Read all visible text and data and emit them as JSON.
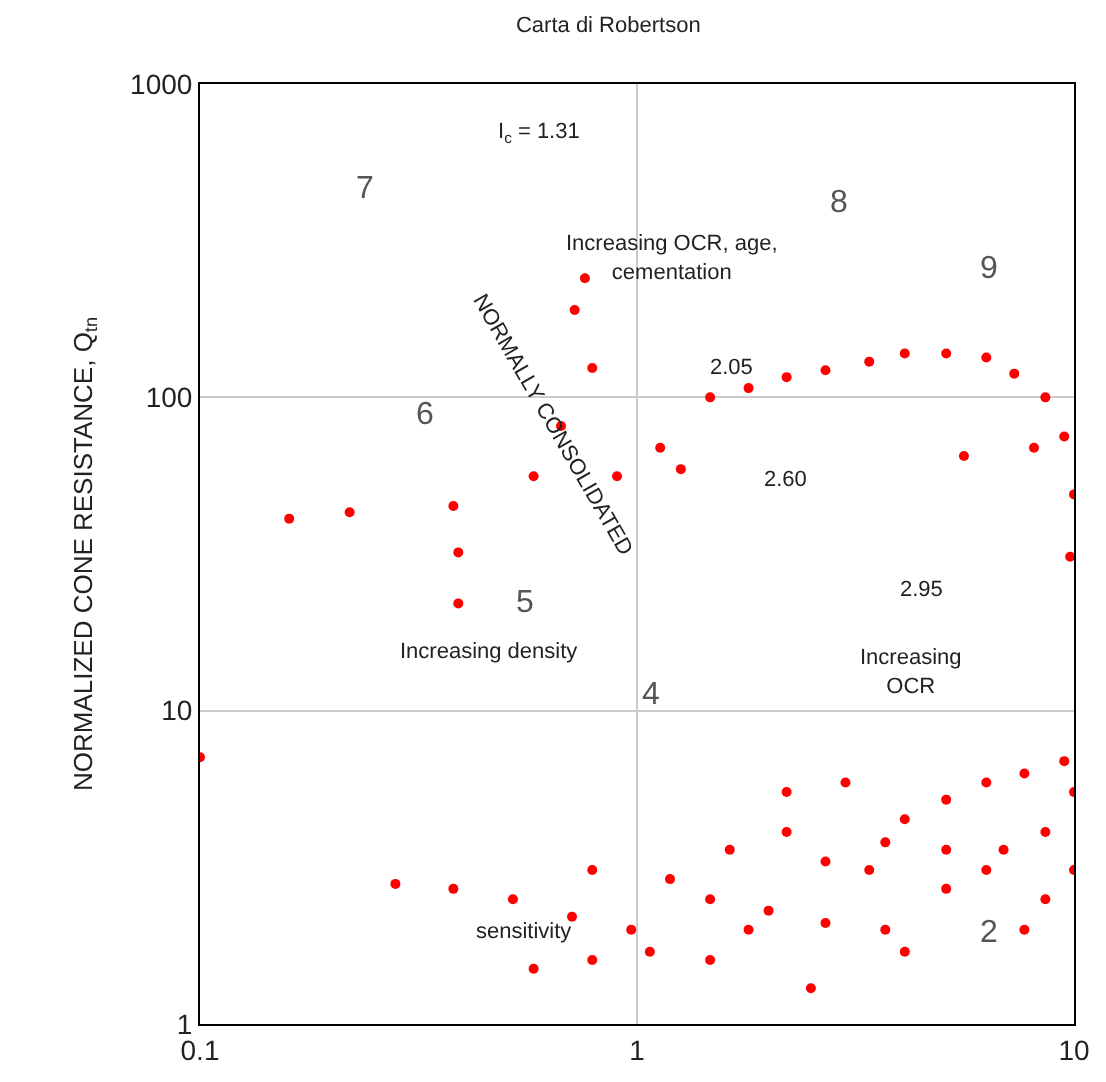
{
  "chart_data": {
    "type": "scatter",
    "title": "Carta di Robertson",
    "ylabel": "NORMALIZED CONE RESISTANCE, Q$_{tn}$",
    "log": "xy",
    "grid": true,
    "marker": "circle",
    "xlim": [
      0.1,
      10
    ],
    "ylim": [
      1,
      1000
    ],
    "xticks": [
      0.1,
      1,
      10
    ],
    "yticks": [
      1,
      10,
      100,
      1000
    ],
    "series": [
      {
        "color": "#ff0000",
        "x": [
          0.1,
          0.16,
          0.22,
          0.38,
          0.39,
          0.39,
          0.58,
          0.67,
          0.72,
          0.76,
          0.79,
          0.9,
          1.13,
          1.26,
          1.47,
          1.8,
          2.2,
          2.7,
          3.4,
          4.1,
          5.1,
          6.3,
          7.3,
          8.6,
          9.5,
          10,
          9.8,
          5.6,
          8.1,
          0.28,
          0.38,
          0.52,
          0.71,
          0.97,
          0.79,
          1.19,
          1.63,
          2.2,
          2.7,
          3.4,
          4.1,
          5.1,
          6.3,
          7.7,
          9.5,
          10,
          8.6,
          6.9,
          5.1,
          3.7,
          2.7,
          2.0,
          1.47,
          2.2,
          3.0,
          3.7,
          6.3,
          8.6,
          0.58,
          0.79,
          1.07,
          1.47,
          2.5,
          4.1,
          7.7,
          10,
          1.8,
          5.1
        ],
        "values": [
          7.1,
          41,
          43,
          45,
          32,
          22,
          56,
          81,
          190,
          240,
          124,
          56,
          69,
          59,
          100,
          107,
          116,
          122,
          130,
          138,
          138,
          134,
          119,
          100,
          75,
          49,
          31,
          65,
          69,
          2.8,
          2.7,
          2.5,
          2.2,
          2.0,
          3.1,
          2.9,
          3.6,
          4.1,
          3.3,
          3.1,
          4.5,
          5.2,
          5.9,
          6.3,
          6.9,
          5.5,
          4.1,
          3.6,
          2.7,
          2.0,
          2.1,
          2.3,
          2.5,
          5.5,
          5.9,
          3.8,
          3.1,
          2.5,
          1.5,
          1.6,
          1.7,
          1.6,
          1.3,
          1.7,
          2.0,
          3.1,
          2.0,
          3.6
        ]
      }
    ],
    "annotations": [
      "7",
      "8",
      "9",
      "6",
      "5",
      "4",
      "2",
      "I$_{c}$ = 1.31",
      "Increasing OCR, age,\ncementation",
      "2.05",
      "2.60",
      "2.95",
      "NORMALLY CONSOLIDATED",
      "Increasing density",
      "Increasing\nOCR",
      "sensitivity"
    ]
  }
}
